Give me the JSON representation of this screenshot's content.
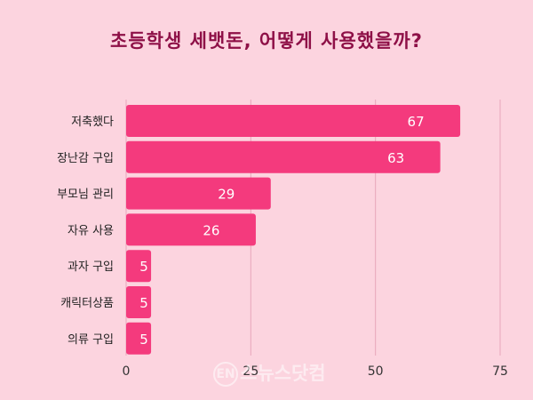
{
  "chart_data": {
    "type": "bar",
    "orientation": "horizontal",
    "title": "초등학생 세뱃돈, 어떻게 사용했을까?",
    "categories": [
      "저축했다",
      "장난감 구입",
      "부모님 관리",
      "자유 사용",
      "과자 구입",
      "캐릭터상품",
      "의류 구입"
    ],
    "values": [
      67,
      63,
      29,
      26,
      5,
      5,
      5
    ],
    "value_labels": [
      "67",
      "63",
      "29",
      "26",
      "5",
      "5",
      "5"
    ],
    "xlim": [
      0,
      75
    ],
    "xticks": [
      0,
      25,
      50,
      75
    ],
    "xtick_labels": [
      "0",
      "25",
      "50",
      "75"
    ],
    "grid": true,
    "bar_color": "#f43a7d",
    "background_color": "#fcd4df",
    "title_color": "#8e1047",
    "xlabel": "",
    "ylabel": ""
  },
  "watermark": {
    "badge": "EN",
    "text": "스뉴스닷컴"
  }
}
